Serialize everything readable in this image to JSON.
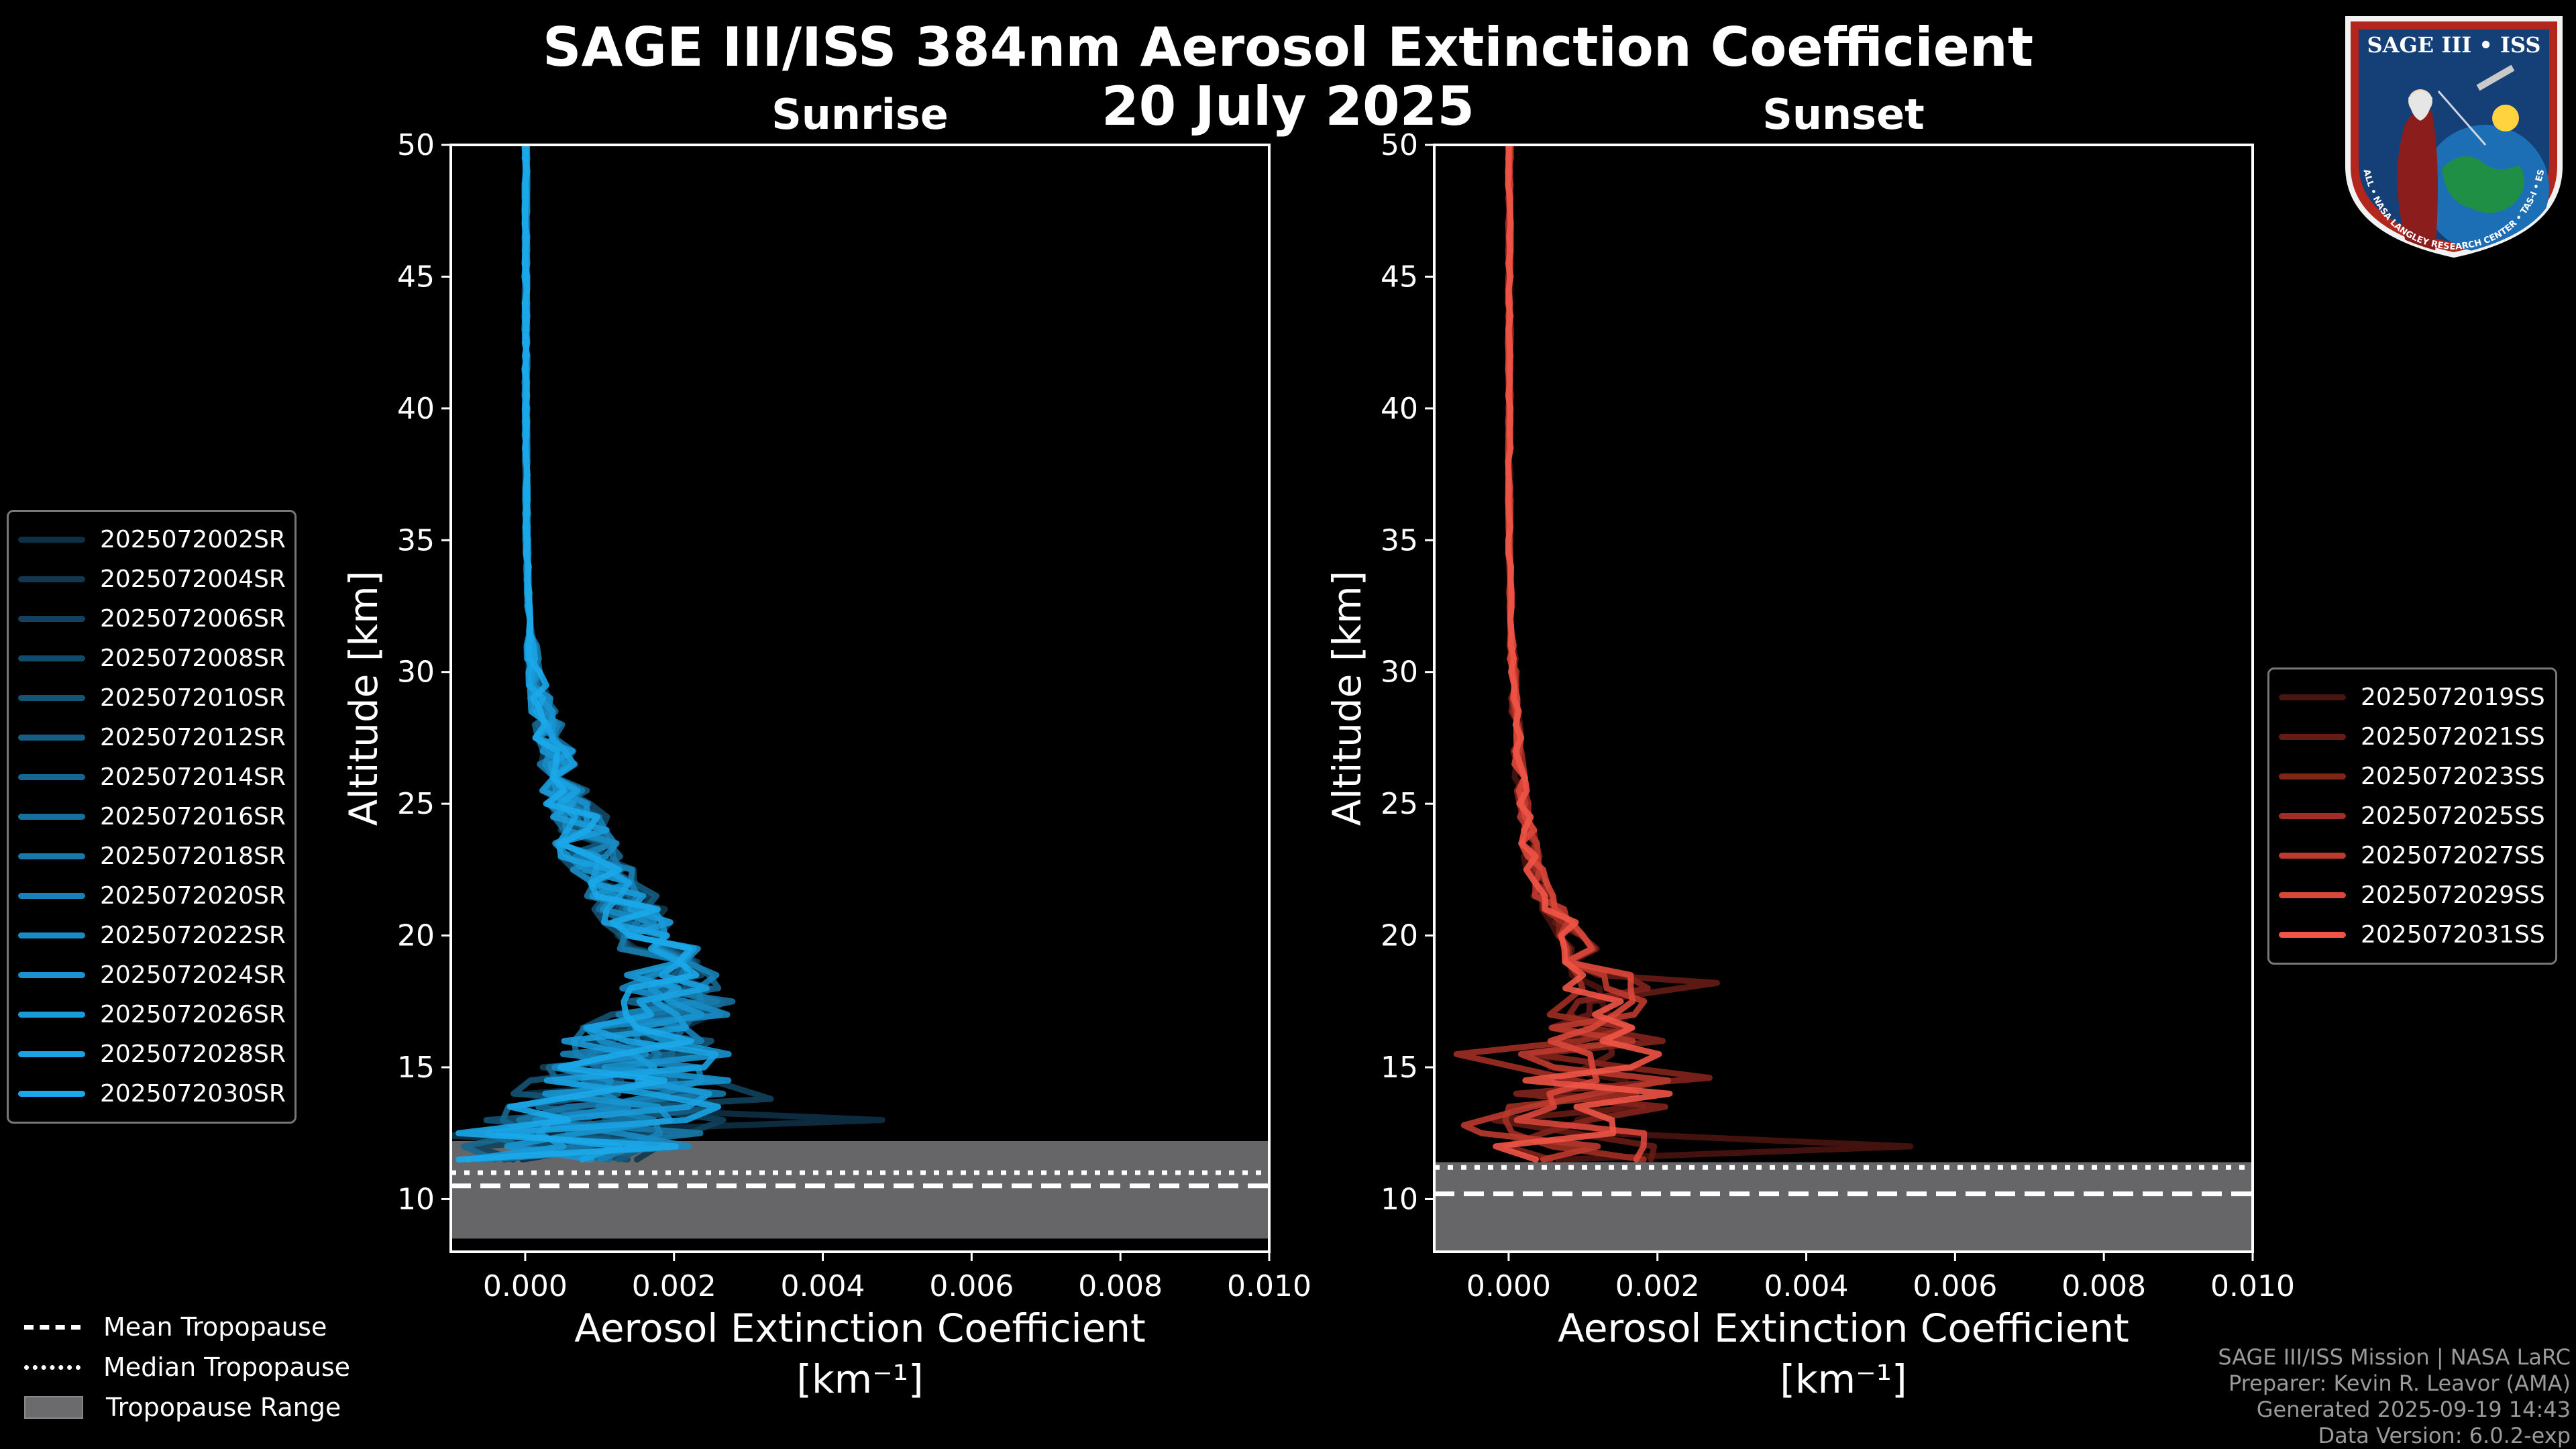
{
  "title": {
    "line1": "SAGE III/ISS 384nm Aerosol Extinction Coefficient",
    "line2": "20 July 2025"
  },
  "badge": {
    "text": "SAGE III • ISS",
    "subtext": "BALL • NASA LANGLEY RESEARCH CENTER • TAS-I • ESA"
  },
  "footer": {
    "line1": "SAGE III/ISS Mission | NASA LaRC",
    "line2": "Preparer: Kevin R. Leavor (AMA)",
    "line3": "Generated 2025-09-19 14:43",
    "line4": "Data Version: 6.0.2-exp"
  },
  "tropopause_legend": [
    {
      "label": "Mean Tropopause",
      "style": "dashed"
    },
    {
      "label": "Median Tropopause",
      "style": "dotted"
    },
    {
      "label": "Tropopause Range",
      "style": "patch"
    }
  ],
  "chart_data": [
    {
      "type": "line",
      "title": "Sunrise",
      "xlabel": "Aerosol Extinction Coefficient",
      "xunit": "[km⁻¹]",
      "ylabel": "Altitude [km]",
      "xlim": [
        -0.001,
        0.01
      ],
      "ylim": [
        8,
        50
      ],
      "xticks": [
        0.0,
        0.002,
        0.004,
        0.006,
        0.008,
        0.01
      ],
      "xtick_labels": [
        "0.000",
        "0.002",
        "0.004",
        "0.006",
        "0.008",
        "0.010"
      ],
      "yticks": [
        10,
        15,
        20,
        25,
        30,
        35,
        40,
        45,
        50
      ],
      "tropopause": {
        "mean": 10.5,
        "median": 11.0,
        "range": [
          8.5,
          12.2
        ]
      },
      "series": [
        {
          "name": "2025072002SR",
          "color": "#0e3045"
        },
        {
          "name": "2025072004SR",
          "color": "#10394f"
        },
        {
          "name": "2025072006SR",
          "color": "#12425c"
        },
        {
          "name": "2025072008SR",
          "color": "#134a68"
        },
        {
          "name": "2025072010SR",
          "color": "#145475"
        },
        {
          "name": "2025072012SR",
          "color": "#155d82"
        },
        {
          "name": "2025072014SR",
          "color": "#16668f"
        },
        {
          "name": "2025072016SR",
          "color": "#16709d"
        },
        {
          "name": "2025072018SR",
          "color": "#1779aa"
        },
        {
          "name": "2025072020SR",
          "color": "#1782b7"
        },
        {
          "name": "2025072022SR",
          "color": "#188bc3"
        },
        {
          "name": "2025072024SR",
          "color": "#1893cf"
        },
        {
          "name": "2025072026SR",
          "color": "#199bd9"
        },
        {
          "name": "2025072028SR",
          "color": "#1aa2e2"
        },
        {
          "name": "2025072030SR",
          "color": "#1ba8ea"
        }
      ],
      "profile": {
        "altitude": [
          50,
          45,
          40,
          35,
          32,
          30,
          29,
          28,
          27,
          26,
          25,
          24,
          23,
          22,
          21,
          20,
          19,
          18,
          17.5,
          17,
          16.5,
          16,
          15.5,
          15,
          14.5,
          14,
          13.5,
          13,
          12.5,
          12
        ],
        "median": [
          1e-05,
          1e-05,
          1e-05,
          2e-05,
          5e-05,
          0.00012,
          0.0002,
          0.0003,
          0.0004,
          0.0005,
          0.0006,
          0.00075,
          0.0009,
          0.00115,
          0.0014,
          0.0017,
          0.0019,
          0.002,
          0.0021,
          0.0019,
          0.0017,
          0.0015,
          0.0016,
          0.0015,
          0.0014,
          0.0012,
          0.0011,
          0.001,
          0.0008,
          0.0006
        ],
        "spread": [
          1e-05,
          1e-05,
          1e-05,
          2e-05,
          5e-05,
          0.0001,
          0.00015,
          0.0002,
          0.00025,
          0.0003,
          0.00035,
          0.0004,
          0.00045,
          0.0005,
          0.0005,
          0.0005,
          0.0006,
          0.0007,
          0.0008,
          0.0009,
          0.001,
          0.0011,
          0.0012,
          0.0013,
          0.0014,
          0.0015,
          0.0016,
          0.0017,
          0.0017,
          0.0016
        ],
        "spikes": [
          {
            "altitude": 13.0,
            "value": 0.0048
          },
          {
            "altitude": 12.4,
            "value": -0.001
          },
          {
            "altitude": 13.8,
            "value": 0.0033
          },
          {
            "altitude": 24.5,
            "value": 0.0011
          },
          {
            "altitude": 17.5,
            "value": 0.0026
          }
        ]
      }
    },
    {
      "type": "line",
      "title": "Sunset",
      "xlabel": "Aerosol Extinction Coefficient",
      "xunit": "[km⁻¹]",
      "ylabel": "Altitude [km]",
      "xlim": [
        -0.001,
        0.01
      ],
      "ylim": [
        8,
        50
      ],
      "xticks": [
        0.0,
        0.002,
        0.004,
        0.006,
        0.008,
        0.01
      ],
      "xtick_labels": [
        "0.000",
        "0.002",
        "0.004",
        "0.006",
        "0.008",
        "0.010"
      ],
      "yticks": [
        10,
        15,
        20,
        25,
        30,
        35,
        40,
        45,
        50
      ],
      "tropopause": {
        "mean": 10.2,
        "median": 11.2,
        "range": [
          8,
          11.4
        ]
      },
      "series": [
        {
          "name": "2025072019SS",
          "color": "#4a1410"
        },
        {
          "name": "2025072021SS",
          "color": "#661c16"
        },
        {
          "name": "2025072023SS",
          "color": "#83241c"
        },
        {
          "name": "2025072025SS",
          "color": "#a02e24"
        },
        {
          "name": "2025072027SS",
          "color": "#bd3a2e"
        },
        {
          "name": "2025072029SS",
          "color": "#d9473a"
        },
        {
          "name": "2025072031SS",
          "color": "#f05446"
        }
      ],
      "profile": {
        "altitude": [
          50,
          45,
          40,
          35,
          32,
          30,
          28,
          26,
          25,
          24,
          23,
          22,
          21,
          20,
          19,
          18.5,
          18,
          17.5,
          17,
          16.5,
          16,
          15.5,
          15,
          14.5,
          14,
          13.5,
          13,
          12.5,
          12
        ],
        "median": [
          1e-05,
          1e-05,
          1e-05,
          1e-05,
          3e-05,
          6e-05,
          0.0001,
          0.00015,
          0.0002,
          0.00025,
          0.0003,
          0.0004,
          0.0006,
          0.0008,
          0.0011,
          0.0012,
          0.0013,
          0.0013,
          0.0012,
          0.0011,
          0.0012,
          0.0011,
          0.001,
          0.0011,
          0.0012,
          0.0011,
          0.001,
          0.0009,
          0.0008
        ],
        "spread": [
          1e-05,
          1e-05,
          1e-05,
          2e-05,
          3e-05,
          5e-05,
          6e-05,
          7e-05,
          8e-05,
          0.0001,
          0.00012,
          0.00015,
          0.0002,
          0.0003,
          0.0004,
          0.0005,
          0.0006,
          0.0006,
          0.0007,
          0.0008,
          0.0009,
          0.001,
          0.001,
          0.0011,
          0.0011,
          0.0012,
          0.0012,
          0.0013,
          0.0013
        ],
        "spikes": [
          {
            "altitude": 12.0,
            "value": 0.0054
          },
          {
            "altitude": 18.2,
            "value": 0.0028
          },
          {
            "altitude": 14.6,
            "value": 0.0027
          },
          {
            "altitude": 15.5,
            "value": -0.0007
          },
          {
            "altitude": 12.8,
            "value": -0.0006
          }
        ]
      }
    }
  ]
}
